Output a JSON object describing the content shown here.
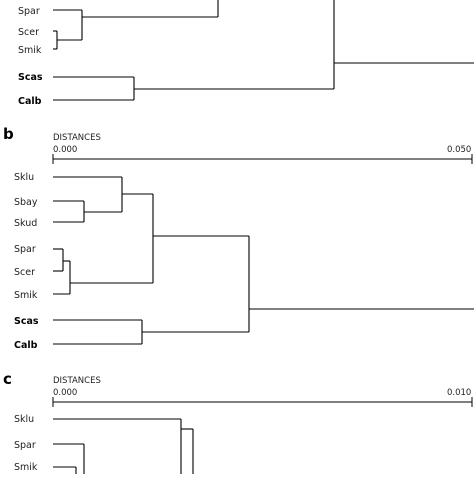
{
  "panels": [
    {
      "id": "a",
      "label": "",
      "axis": null,
      "taxa": [
        {
          "name": "Spar",
          "bold": false
        },
        {
          "name": "Scer",
          "bold": false
        },
        {
          "name": "Smik",
          "bold": false
        },
        {
          "name": "Scas",
          "bold": true
        },
        {
          "name": "Calb",
          "bold": true
        }
      ]
    },
    {
      "id": "b",
      "label": "b",
      "axis": {
        "title": "DISTANCES",
        "min_label": "0.000",
        "max_label": "0.050"
      },
      "taxa": [
        {
          "name": "Sklu",
          "bold": false
        },
        {
          "name": "Sbay",
          "bold": false
        },
        {
          "name": "Skud",
          "bold": false
        },
        {
          "name": "Spar",
          "bold": false
        },
        {
          "name": "Scer",
          "bold": false
        },
        {
          "name": "Smik",
          "bold": false
        },
        {
          "name": "Scas",
          "bold": true
        },
        {
          "name": "Calb",
          "bold": true
        }
      ]
    },
    {
      "id": "c",
      "label": "c",
      "axis": {
        "title": "DISTANCES",
        "min_label": "0.000",
        "max_label": "0.010"
      },
      "taxa": [
        {
          "name": "Sklu",
          "bold": false
        },
        {
          "name": "Spar",
          "bold": false
        },
        {
          "name": "Smik",
          "bold": false
        }
      ]
    }
  ]
}
